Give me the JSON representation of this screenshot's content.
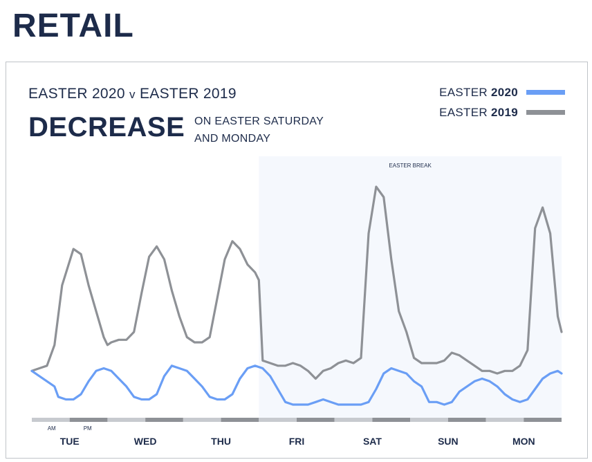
{
  "page": {
    "title": "RETAIL"
  },
  "header": {
    "subtitle_prefix": "EASTER 2020",
    "subtitle_v": "v",
    "subtitle_suffix": "EASTER 2019",
    "headline": "DECREASE",
    "note_line1": "ON EASTER SATURDAY",
    "note_line2": "AND MONDAY"
  },
  "colors": {
    "series2020": "#6a9ef5",
    "series2019": "#8e9196",
    "highlight": "#f5f8fd",
    "navy": "#1d2b4a",
    "bar_light": "#c7cacf",
    "bar_dark": "#8e9196"
  },
  "chart_data": {
    "type": "line",
    "title": "EASTER 2020 v EASTER 2019",
    "xlabel": "",
    "ylabel": "",
    "ylim": [
      0,
      100
    ],
    "grid": false,
    "legend_position": "top-right",
    "categories": [
      "TUE",
      "WED",
      "THU",
      "FRI",
      "SAT",
      "SUN",
      "MON"
    ],
    "x_range": [
      0,
      7
    ],
    "day_part_labels": {
      "am": "AM",
      "pm": "PM"
    },
    "highlight": {
      "label": "EASTER BREAK",
      "x_start": 3.0,
      "x_end": 7.0
    },
    "series": [
      {
        "name": "EASTER 2020",
        "name_prefix": "EASTER",
        "name_year": "2020",
        "color": "#6a9ef5",
        "points": [
          [
            0.0,
            17
          ],
          [
            0.1,
            15
          ],
          [
            0.2,
            13
          ],
          [
            0.3,
            11
          ],
          [
            0.35,
            7
          ],
          [
            0.45,
            6
          ],
          [
            0.55,
            6
          ],
          [
            0.65,
            8
          ],
          [
            0.75,
            13
          ],
          [
            0.85,
            17
          ],
          [
            0.95,
            18
          ],
          [
            1.05,
            17
          ],
          [
            1.15,
            14
          ],
          [
            1.25,
            11
          ],
          [
            1.35,
            7
          ],
          [
            1.45,
            6
          ],
          [
            1.55,
            6
          ],
          [
            1.65,
            8
          ],
          [
            1.75,
            15
          ],
          [
            1.85,
            19
          ],
          [
            1.95,
            18
          ],
          [
            2.05,
            17
          ],
          [
            2.15,
            14
          ],
          [
            2.25,
            11
          ],
          [
            2.35,
            7
          ],
          [
            2.45,
            6
          ],
          [
            2.55,
            6
          ],
          [
            2.65,
            8
          ],
          [
            2.75,
            14
          ],
          [
            2.85,
            18
          ],
          [
            2.95,
            19
          ],
          [
            3.05,
            18
          ],
          [
            3.15,
            15
          ],
          [
            3.25,
            10
          ],
          [
            3.35,
            5
          ],
          [
            3.45,
            4
          ],
          [
            3.55,
            4
          ],
          [
            3.65,
            4
          ],
          [
            3.75,
            5
          ],
          [
            3.85,
            6
          ],
          [
            3.95,
            5
          ],
          [
            4.05,
            4
          ],
          [
            4.15,
            4
          ],
          [
            4.25,
            4
          ],
          [
            4.35,
            4
          ],
          [
            4.45,
            5
          ],
          [
            4.55,
            10
          ],
          [
            4.65,
            16
          ],
          [
            4.75,
            18
          ],
          [
            4.85,
            17
          ],
          [
            4.95,
            16
          ],
          [
            5.05,
            13
          ],
          [
            5.15,
            11
          ],
          [
            5.25,
            5
          ],
          [
            5.35,
            5
          ],
          [
            5.45,
            4
          ],
          [
            5.55,
            5
          ],
          [
            5.65,
            9
          ],
          [
            5.75,
            11
          ],
          [
            5.85,
            13
          ],
          [
            5.95,
            14
          ],
          [
            6.05,
            13
          ],
          [
            6.15,
            11
          ],
          [
            6.25,
            8
          ],
          [
            6.35,
            6
          ],
          [
            6.45,
            5
          ],
          [
            6.55,
            6
          ],
          [
            6.65,
            10
          ],
          [
            6.75,
            14
          ],
          [
            6.85,
            16
          ],
          [
            6.95,
            17
          ],
          [
            7.0,
            16
          ]
        ]
      },
      {
        "name": "EASTER 2019",
        "name_prefix": "EASTER",
        "name_year": "2019",
        "color": "#8e9196",
        "points": [
          [
            0.0,
            17
          ],
          [
            0.1,
            18
          ],
          [
            0.2,
            19
          ],
          [
            0.3,
            27
          ],
          [
            0.4,
            50
          ],
          [
            0.55,
            64
          ],
          [
            0.65,
            62
          ],
          [
            0.75,
            50
          ],
          [
            0.85,
            40
          ],
          [
            0.95,
            30
          ],
          [
            1.0,
            27
          ],
          [
            1.05,
            28
          ],
          [
            1.15,
            29
          ],
          [
            1.25,
            29
          ],
          [
            1.35,
            32
          ],
          [
            1.45,
            47
          ],
          [
            1.55,
            61
          ],
          [
            1.65,
            65
          ],
          [
            1.75,
            60
          ],
          [
            1.85,
            48
          ],
          [
            1.95,
            38
          ],
          [
            2.05,
            30
          ],
          [
            2.15,
            28
          ],
          [
            2.25,
            28
          ],
          [
            2.35,
            30
          ],
          [
            2.45,
            45
          ],
          [
            2.55,
            60
          ],
          [
            2.65,
            67
          ],
          [
            2.75,
            64
          ],
          [
            2.85,
            58
          ],
          [
            2.95,
            55
          ],
          [
            3.0,
            52
          ],
          [
            3.05,
            21
          ],
          [
            3.15,
            20
          ],
          [
            3.25,
            19
          ],
          [
            3.35,
            19
          ],
          [
            3.45,
            20
          ],
          [
            3.55,
            19
          ],
          [
            3.65,
            17
          ],
          [
            3.75,
            14
          ],
          [
            3.85,
            17
          ],
          [
            3.95,
            18
          ],
          [
            4.05,
            20
          ],
          [
            4.15,
            21
          ],
          [
            4.25,
            20
          ],
          [
            4.35,
            22
          ],
          [
            4.45,
            70
          ],
          [
            4.55,
            88
          ],
          [
            4.65,
            84
          ],
          [
            4.75,
            60
          ],
          [
            4.85,
            40
          ],
          [
            4.95,
            32
          ],
          [
            5.05,
            22
          ],
          [
            5.15,
            20
          ],
          [
            5.25,
            20
          ],
          [
            5.35,
            20
          ],
          [
            5.45,
            21
          ],
          [
            5.55,
            24
          ],
          [
            5.65,
            23
          ],
          [
            5.75,
            21
          ],
          [
            5.85,
            19
          ],
          [
            5.95,
            17
          ],
          [
            6.05,
            17
          ],
          [
            6.15,
            16
          ],
          [
            6.25,
            17
          ],
          [
            6.35,
            17
          ],
          [
            6.45,
            19
          ],
          [
            6.55,
            25
          ],
          [
            6.65,
            72
          ],
          [
            6.75,
            80
          ],
          [
            6.85,
            70
          ],
          [
            6.95,
            38
          ],
          [
            7.0,
            32
          ]
        ]
      }
    ]
  }
}
